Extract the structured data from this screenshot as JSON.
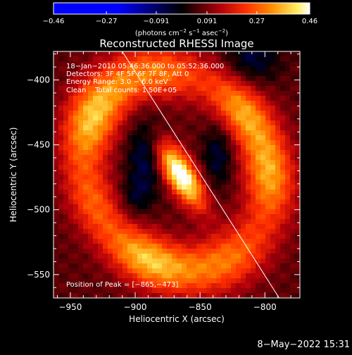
{
  "chart_data": {
    "type": "heatmap",
    "title": "Reconstructed RHESSI Image",
    "xlabel": "Heliocentric X (arcsec)",
    "ylabel": "Heliocentric Y (arcsec)",
    "xlim": [
      -963,
      -773
    ],
    "ylim": [
      -568,
      -378
    ],
    "x_ticks": [
      -950,
      -900,
      -850,
      -800
    ],
    "y_ticks": [
      -550,
      -500,
      -450,
      -400
    ],
    "x_tick_labels": [
      "−950",
      "−900",
      "−850",
      "−800"
    ],
    "y_tick_labels": [
      "−550",
      "−500",
      "−450",
      "−400"
    ],
    "colorbar": {
      "range": [
        -0.46,
        0.46
      ],
      "ticks": [
        -0.46,
        -0.27,
        -0.091,
        0.091,
        0.27,
        0.46
      ],
      "tick_labels": [
        "−0.46",
        "−0.27",
        "−0.091",
        "0.091",
        "0.27",
        "0.46"
      ],
      "units_label_main": "(photons cm",
      "units_exp1": "−2",
      "units_mid": " s",
      "units_exp2": "−1",
      "units_end": " asec",
      "units_exp3": "−2",
      "units_close": ")"
    },
    "annotations": {
      "lines": [
        "18−Jan−2010 05:46:36.000 to 05:52:36.000",
        "Detectors: 3F 4F 5F 6F 7F 8F, Att 0",
        "Energy Range: 3.0 − 6.0 keV",
        "Clean    Total counts: 1.50E+05"
      ],
      "peak_text": "Position of Peak = [−865,−473]",
      "peak": [
        -865,
        -473
      ]
    },
    "image_model": {
      "background_level": 0.07,
      "ring": {
        "center": [
          -868,
          -470
        ],
        "rx": 68,
        "ry": 79,
        "rotation_deg": 33,
        "width": 13,
        "amplitude": 0.3
      },
      "core": {
        "center": [
          -865,
          -473
        ],
        "sx": 8,
        "sy": 20,
        "rotation_deg": 33,
        "amplitude": 0.43
      },
      "dark_lobes": [
        {
          "center": [
            -892,
            -458
          ],
          "sx": 10,
          "sy": 22,
          "amplitude": -0.14
        },
        {
          "center": [
            -836,
            -458
          ],
          "sx": 8,
          "sy": 18,
          "amplitude": -0.12
        },
        {
          "center": [
            -900,
            -490
          ],
          "sx": 8,
          "sy": 10,
          "amplitude": -0.08
        },
        {
          "center": [
            -810,
            -383
          ],
          "sx": 15,
          "sy": 15,
          "amplitude": -0.12
        }
      ],
      "limb_line": {
        "from": [
          -910,
          -378
        ],
        "to": [
          -789,
          -568
        ]
      }
    }
  },
  "footer": {
    "date_stamp": "8−May−2022 15:31"
  }
}
